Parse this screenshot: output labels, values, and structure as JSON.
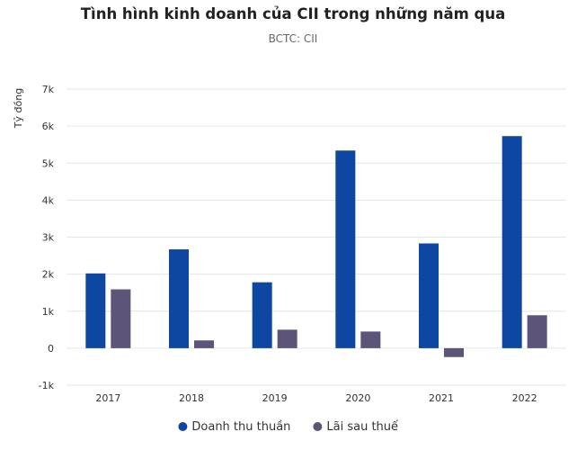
{
  "chart_data": {
    "type": "bar",
    "title": "Tình hình kinh doanh của CII trong những năm qua",
    "subtitle": "BCTC: CII",
    "ylabel": "Tỷ đồng",
    "xlabel": "",
    "categories": [
      "2017",
      "2018",
      "2019",
      "2020",
      "2021",
      "2022"
    ],
    "series": [
      {
        "name": "Doanh thu thuần",
        "color": "#0d47a1",
        "values": [
          2020,
          2670,
          1780,
          5340,
          2830,
          5730
        ]
      },
      {
        "name": "Lãi sau thuế",
        "color": "#5c5579",
        "values": [
          1590,
          210,
          500,
          450,
          -240,
          890
        ]
      }
    ],
    "ylim": [
      -1000,
      7000
    ],
    "yticks": [
      -1000,
      0,
      1000,
      2000,
      3000,
      4000,
      5000,
      6000,
      7000
    ],
    "ytick_labels": [
      "-1k",
      "0",
      "1k",
      "2k",
      "3k",
      "4k",
      "5k",
      "6k",
      "7k"
    ],
    "grid": true,
    "legend_position": "bottom"
  }
}
